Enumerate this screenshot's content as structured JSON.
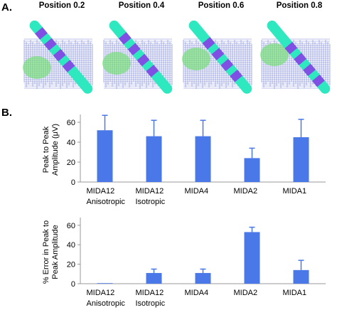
{
  "panel_a": {
    "label": "A.",
    "positions": [
      "Position 0.2",
      "Position 0.4",
      "Position 0.6",
      "Position 0.8"
    ]
  },
  "panel_b": {
    "label": "B."
  },
  "colors": {
    "bar": "#4a78e8",
    "probe_shaft": "#2ee8c0",
    "probe_contact": "#8a3fe8",
    "mesh": "#4a5cc8",
    "field": "#5ee05a"
  },
  "chart_data": [
    {
      "type": "bar",
      "categories": [
        "MIDA12\nAnisotropic",
        "MIDA12\nIsotropic",
        "MIDA4",
        "MIDA2",
        "MIDA1"
      ],
      "values": [
        52,
        46,
        46,
        24,
        45
      ],
      "errors": [
        15,
        16,
        16,
        10,
        18
      ],
      "title": "",
      "xlabel": "",
      "ylabel": "Peak to Peak\nAmplitude (μV)",
      "ylim": [
        0,
        65
      ],
      "yticks": [
        0,
        20,
        40,
        60
      ],
      "grid": false
    },
    {
      "type": "bar",
      "categories": [
        "MIDA12\nAnisotropic",
        "MIDA12\nIsotropic",
        "MIDA4",
        "MIDA2",
        "MIDA1"
      ],
      "values": [
        0,
        11,
        11,
        53,
        14
      ],
      "errors": [
        0,
        4,
        4,
        5,
        10
      ],
      "title": "",
      "xlabel": "",
      "ylabel": "% Error in Peak to\nPeak Amplitude",
      "ylim": [
        0,
        65
      ],
      "yticks": [
        0,
        20,
        40,
        60
      ],
      "grid": false
    }
  ]
}
